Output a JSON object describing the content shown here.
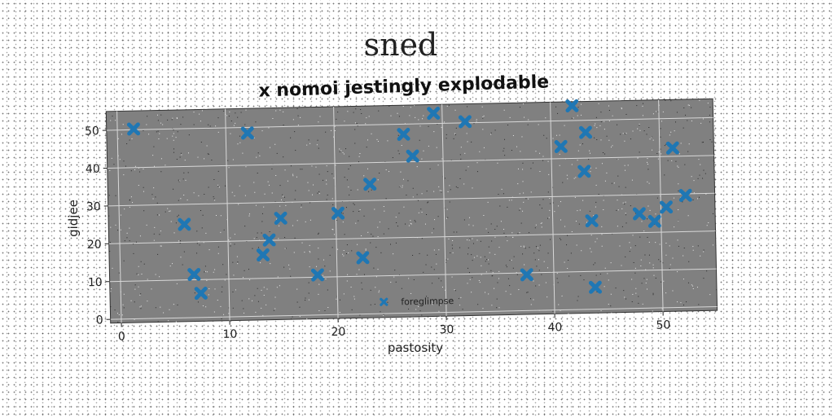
{
  "chart_data": {
    "type": "scatter",
    "suptitle": "sned",
    "title": "x nomoi jestingly explodable",
    "xlabel": "pastosity",
    "ylabel": "gidjee",
    "xlim": [
      -1,
      55
    ],
    "ylim": [
      -1,
      55
    ],
    "xticks": [
      0,
      10,
      20,
      30,
      40,
      50
    ],
    "yticks": [
      0,
      10,
      20,
      30,
      40,
      50
    ],
    "grid": true,
    "legend_position": "lower center",
    "series": [
      {
        "name": "foreglimpse",
        "color": "#1f77b4",
        "marker": "x",
        "x": [
          1.5,
          6,
          6.8,
          7.4,
          12,
          13.2,
          13.8,
          14.9,
          18.2,
          20.2,
          22.4,
          23.2,
          26.4,
          27.2,
          29.2,
          32.1,
          37.5,
          40.9,
          42,
          43,
          43.2,
          43.6,
          43.8,
          48,
          49.4,
          50.5,
          51.2,
          52.3
        ],
        "y": [
          50.2,
          24.7,
          11.4,
          6.4,
          48.5,
          16.2,
          20.1,
          25.8,
          10.6,
          26.8,
          14.9,
          34.3,
          47.3,
          41.5,
          52.7,
          50.3,
          9.5,
          43.2,
          53.9,
          36.5,
          46.8,
          23.4,
          5.8,
          25,
          22.9,
          26.6,
          42.2,
          29.6
        ]
      }
    ]
  }
}
